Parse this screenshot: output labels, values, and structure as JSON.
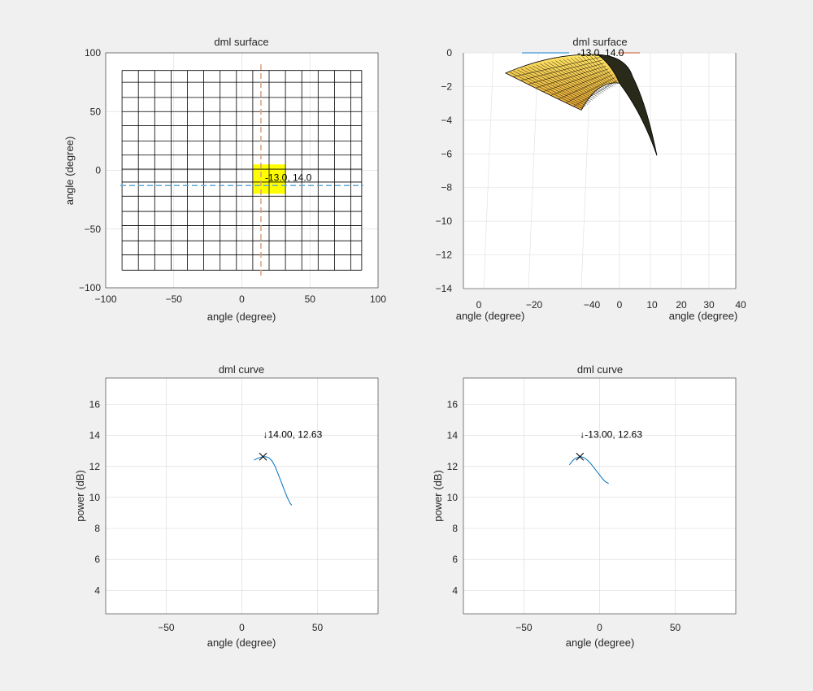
{
  "figure": {
    "background": "#f0f0f0"
  },
  "chart_data": [
    {
      "id": "surface2d",
      "type": "heatmap",
      "title": "dml surface",
      "xlabel": "angle (degree)",
      "ylabel": "angle (degree)",
      "xlim": [
        -100,
        100
      ],
      "ylim": [
        -100,
        100
      ],
      "xticks": [
        -100,
        -50,
        0,
        50,
        100
      ],
      "yticks": [
        100,
        50,
        0,
        -50,
        -100
      ],
      "grid": true,
      "mesh": {
        "x": [
          -88,
          -76,
          -64,
          -52,
          -40,
          -28,
          -16,
          -4,
          8,
          20,
          32,
          44,
          56,
          68,
          80,
          88
        ],
        "y": [
          85,
          75,
          62,
          50,
          38,
          25,
          13,
          1,
          -10,
          -22,
          -35,
          -47,
          -60,
          -72,
          -85
        ],
        "color": "#000000"
      },
      "highlight": {
        "x": [
          8,
          32
        ],
        "y": [
          5,
          -20
        ],
        "color": "#ffff00"
      },
      "crosshair": {
        "vertical_x": 14,
        "horizontal_y": -13,
        "vertical_color": "#d9a07a",
        "horizontal_color": "#5fa8d9",
        "label": "-13.0, 14.0",
        "label_at": [
          17,
          -9
        ]
      }
    },
    {
      "id": "surface3d",
      "type": "area",
      "title": "dml surface",
      "xlabel": "angle (degree)",
      "ylabel": "angle (degree)",
      "zlim": [
        -14,
        0
      ],
      "zticks": [
        0,
        -2,
        -4,
        -6,
        -8,
        -10,
        -12,
        -14
      ],
      "xticks_front": [
        "0",
        "-20",
        "-40"
      ],
      "xticks_side": [
        "0",
        "10",
        "20",
        "30",
        "40"
      ],
      "grid": true,
      "label": "-13.0, 14.0",
      "surface_color_top": "#ffe566",
      "surface_color_bottom": "#e0a030",
      "edge_color": "#000000",
      "corners": {
        "left": [
          -1.2
        ],
        "front": [
          -3.4
        ],
        "peak": [
          -1.8
        ],
        "back_right": [
          -0.1
        ],
        "bottom_tip": [
          -6.1
        ]
      }
    },
    {
      "id": "curve_left",
      "type": "line",
      "title": "dml curve",
      "xlabel": "angle (degree)",
      "ylabel": "power (dB)",
      "xlim": [
        -90,
        90
      ],
      "ylim": [
        2.5,
        17.7
      ],
      "xticks": [
        -50,
        0,
        50
      ],
      "yticks": [
        4,
        6,
        8,
        10,
        12,
        14,
        16
      ],
      "grid": true,
      "series": [
        {
          "color": "#0072bd",
          "x": [
            8,
            10,
            12,
            14,
            16,
            18,
            20,
            22,
            24,
            26,
            28,
            30,
            32,
            33
          ],
          "y": [
            12.4,
            12.5,
            12.58,
            12.63,
            12.62,
            12.55,
            12.35,
            12.0,
            11.5,
            11.0,
            10.5,
            10.0,
            9.6,
            9.5
          ]
        }
      ],
      "marker": {
        "x": 14,
        "y": 12.63,
        "symbol": "x"
      },
      "datatip": {
        "label": "14.00, 12.63",
        "arrow": "↓"
      }
    },
    {
      "id": "curve_right",
      "type": "line",
      "title": "dml curve",
      "xlabel": "angle (degree)",
      "ylabel": "power (dB)",
      "xlim": [
        -90,
        90
      ],
      "ylim": [
        2.5,
        17.7
      ],
      "xticks": [
        -50,
        0,
        50
      ],
      "yticks": [
        4,
        6,
        8,
        10,
        12,
        14,
        16
      ],
      "grid": true,
      "series": [
        {
          "color": "#0072bd",
          "x": [
            -20,
            -18,
            -16,
            -14,
            -13,
            -12,
            -10,
            -8,
            -6,
            -4,
            -2,
            0,
            2,
            4,
            6
          ],
          "y": [
            12.1,
            12.35,
            12.52,
            12.6,
            12.63,
            12.62,
            12.55,
            12.4,
            12.2,
            11.95,
            11.7,
            11.45,
            11.2,
            11.0,
            10.9
          ]
        }
      ],
      "marker": {
        "x": -13,
        "y": 12.63,
        "symbol": "x"
      },
      "datatip": {
        "label": "-13.00, 12.63",
        "arrow": "↓"
      }
    }
  ]
}
